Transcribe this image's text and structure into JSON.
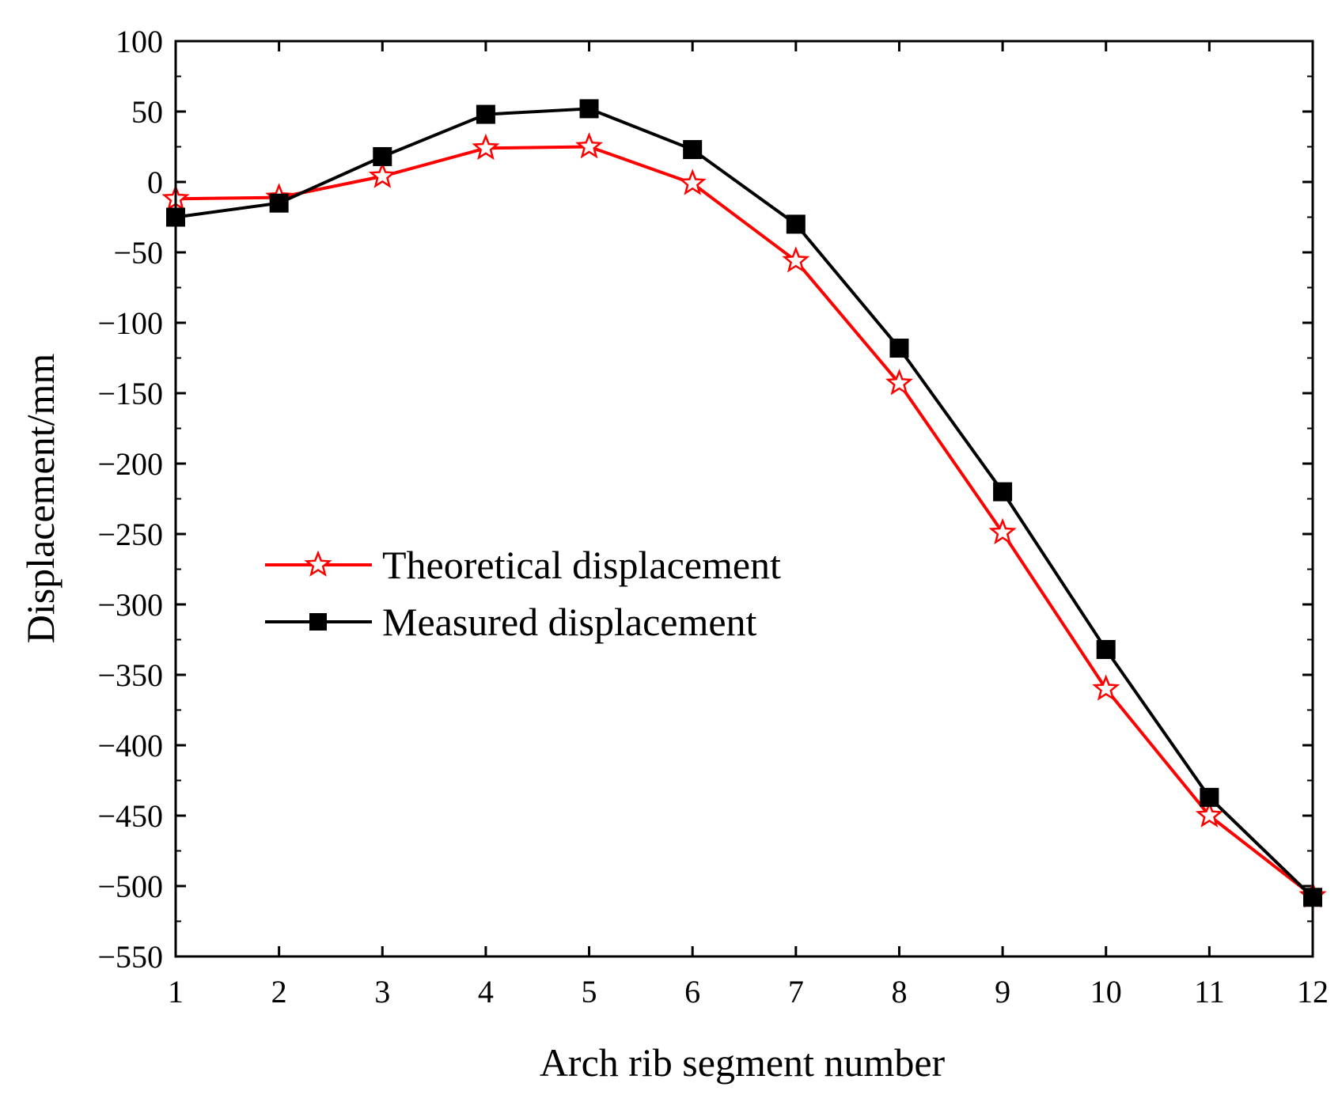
{
  "chart_data": {
    "type": "line",
    "title": "",
    "xlabel": "Arch rib segment number",
    "ylabel": "Displacement/mm",
    "x": [
      1,
      2,
      3,
      4,
      5,
      6,
      7,
      8,
      9,
      10,
      11,
      12
    ],
    "xlim": [
      1,
      12
    ],
    "ylim": [
      -550,
      100
    ],
    "yticks": [
      100,
      50,
      0,
      -50,
      -100,
      -150,
      -200,
      -250,
      -300,
      -350,
      -400,
      -450,
      -500,
      -550
    ],
    "ytick_labels": [
      "100",
      "50",
      "0",
      "−50",
      "−100",
      "−150",
      "−200",
      "−250",
      "−300",
      "−350",
      "−400",
      "−450",
      "−500",
      "−550"
    ],
    "xtick_labels": [
      "1",
      "2",
      "3",
      "4",
      "5",
      "6",
      "7",
      "8",
      "9",
      "10",
      "11",
      "12"
    ],
    "grid": false,
    "legend_position": "center-left",
    "series": [
      {
        "name": "Theoretical displacement",
        "color": "#ff0000",
        "marker": "open-star",
        "values": [
          -12,
          -11,
          4,
          24,
          25,
          -1,
          -56,
          -143,
          -249,
          -360,
          -450,
          -507
        ]
      },
      {
        "name": "Measured displacement",
        "color": "#000000",
        "marker": "filled-square",
        "values": [
          -25,
          -15,
          18,
          48,
          52,
          23,
          -30,
          -118,
          -220,
          -332,
          -437,
          -508
        ]
      }
    ]
  }
}
